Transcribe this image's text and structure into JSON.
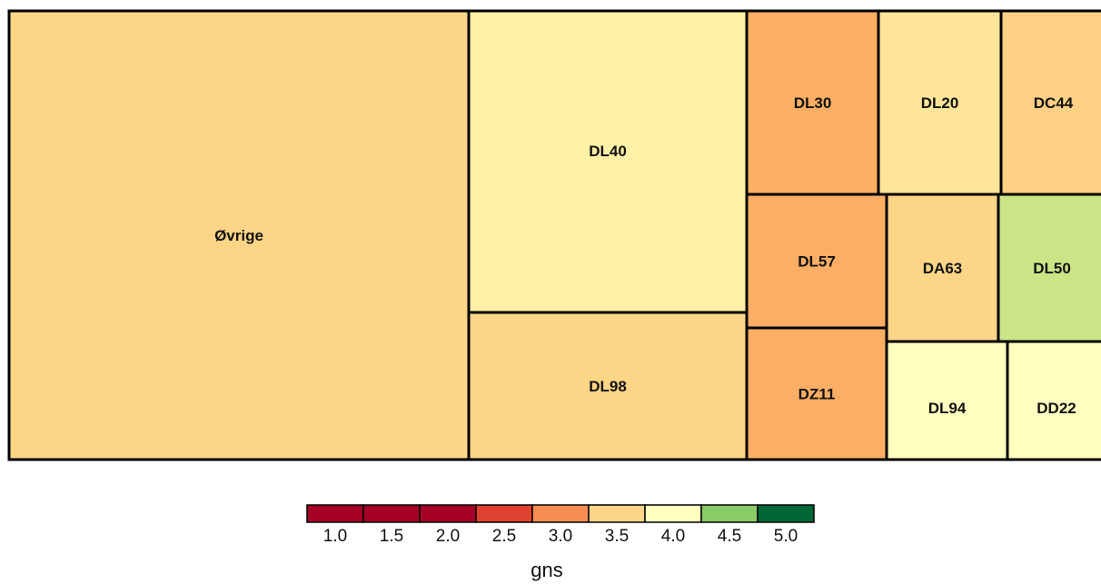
{
  "chart_data": {
    "type": "treemap",
    "title": "",
    "fill_variable": "gns",
    "tiles": [
      {
        "label": "Øvrige",
        "gns": 3.5,
        "color": "#FDD587"
      },
      {
        "label": "DL40",
        "gns": 3.8,
        "color": "#FEF0A6"
      },
      {
        "label": "DL98",
        "gns": 3.5,
        "color": "#FDD587"
      },
      {
        "label": "DL30",
        "gns": 3.1,
        "color": "#FBAE64"
      },
      {
        "label": "DL20",
        "gns": 3.7,
        "color": "#FEE599"
      },
      {
        "label": "DC44",
        "gns": 3.4,
        "color": "#FDD084"
      },
      {
        "label": "DL57",
        "gns": 3.1,
        "color": "#FBAE64"
      },
      {
        "label": "DA63",
        "gns": 3.5,
        "color": "#FDD587"
      },
      {
        "label": "DL50",
        "gns": 4.4,
        "color": "#CBE586"
      },
      {
        "label": "DZ11",
        "gns": 3.1,
        "color": "#FBAE64"
      },
      {
        "label": "DL94",
        "gns": 4.0,
        "color": "#FFFFBF"
      },
      {
        "label": "DD22",
        "gns": 4.0,
        "color": "#FFFFBF"
      }
    ],
    "legend": {
      "title": "gns",
      "ticks": [
        "1.0",
        "1.5",
        "2.0",
        "2.5",
        "3.0",
        "3.5",
        "4.0",
        "4.5",
        "5.0"
      ],
      "colors": [
        "#A50026",
        "#A50026",
        "#A50026",
        "#E0422F",
        "#F88D52",
        "#FDD587",
        "#FFFFBF",
        "#8ACA67",
        "#006837"
      ]
    }
  }
}
